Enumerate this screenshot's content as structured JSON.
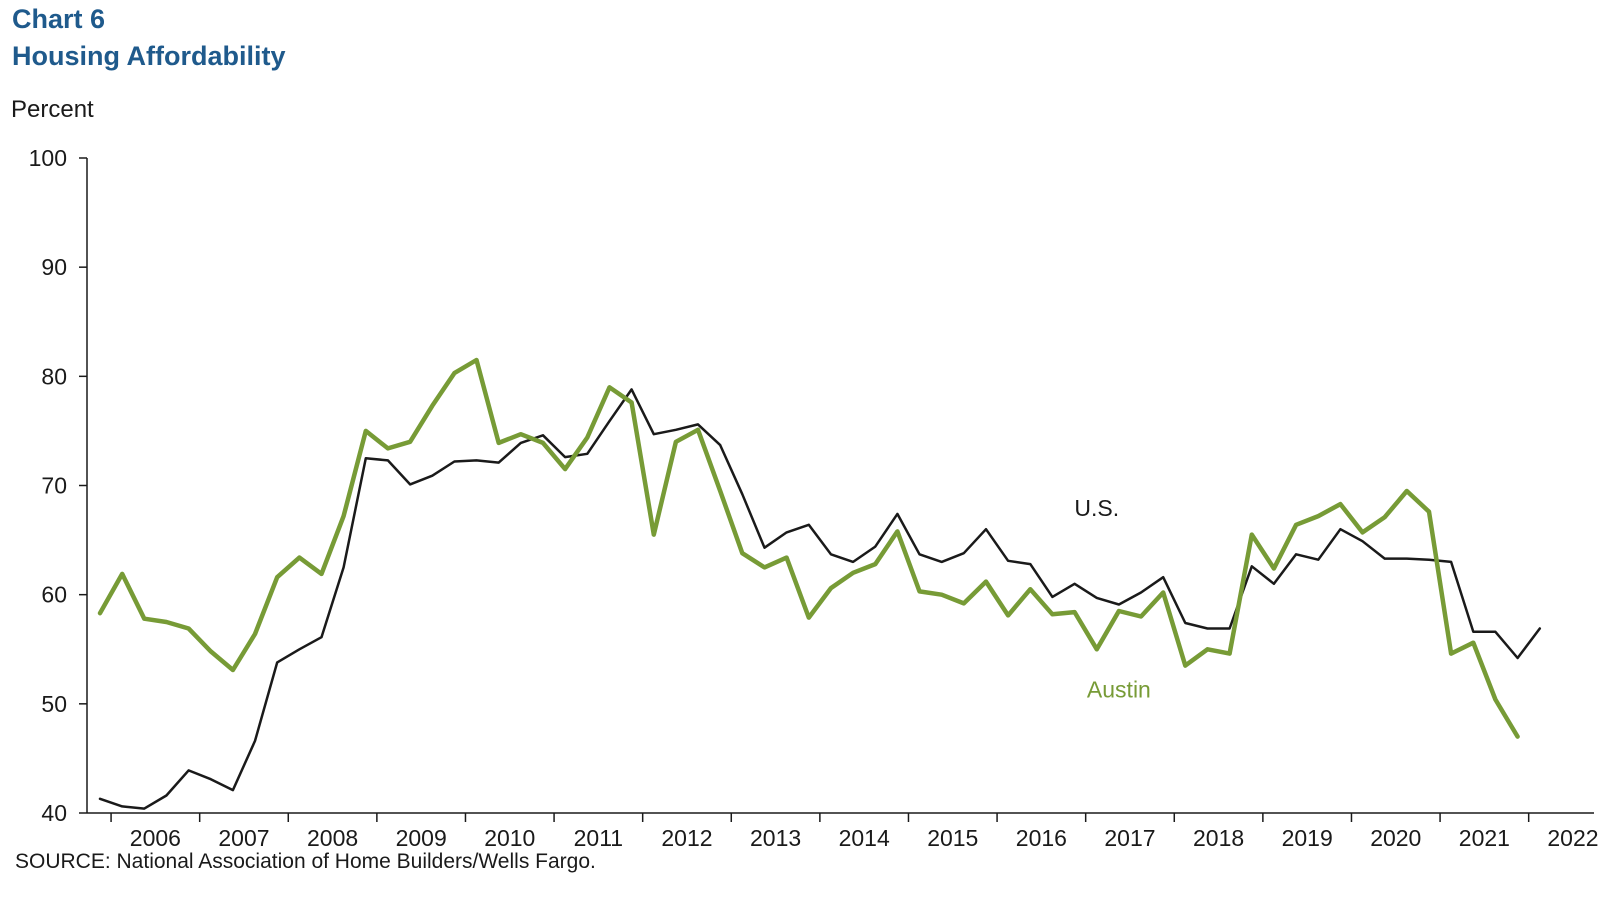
{
  "chart_number": "Chart 6",
  "chart_data": {
    "type": "line",
    "title": "Housing Affordability",
    "ylabel": "Percent",
    "xlabel": "",
    "ylim": [
      40,
      100
    ],
    "yticks": [
      40,
      50,
      60,
      70,
      80,
      90,
      100
    ],
    "xticks": [
      "2006",
      "2007",
      "2008",
      "2009",
      "2010",
      "2011",
      "2012",
      "2013",
      "2014",
      "2015",
      "2016",
      "2017",
      "2018",
      "2019",
      "2020",
      "2021",
      "2022"
    ],
    "x_start": "2005-Q4",
    "frequency": "quarterly",
    "grid": false,
    "series": [
      {
        "name": "U.S.",
        "color": "#1a1a1a",
        "values": [
          41.3,
          40.6,
          40.4,
          41.6,
          43.9,
          43.1,
          42.1,
          46.6,
          53.8,
          55.0,
          56.1,
          62.5,
          72.5,
          72.3,
          70.1,
          70.9,
          72.2,
          72.3,
          72.1,
          73.9,
          74.6,
          72.6,
          72.9,
          75.9,
          78.8,
          74.7,
          75.1,
          75.6,
          73.7,
          69.2,
          64.3,
          65.7,
          66.4,
          63.7,
          63.0,
          64.4,
          67.4,
          63.7,
          63.0,
          63.8,
          66.0,
          63.1,
          62.8,
          59.8,
          61.0,
          59.7,
          59.1,
          60.2,
          61.6,
          57.4,
          56.9,
          56.9,
          62.6,
          61.0,
          63.7,
          63.2,
          66.0,
          64.9,
          63.3,
          63.3,
          63.2,
          63.0,
          56.6,
          56.6,
          54.2,
          56.9
        ]
      },
      {
        "name": "Austin",
        "color": "#779b36",
        "values": [
          58.3,
          61.9,
          57.8,
          57.5,
          56.9,
          54.8,
          53.1,
          56.4,
          61.6,
          63.4,
          61.9,
          67.2,
          75.0,
          73.4,
          74.0,
          77.3,
          80.3,
          81.5,
          73.9,
          74.7,
          73.9,
          71.5,
          74.4,
          79.0,
          77.6,
          65.5,
          74.0,
          75.1,
          69.5,
          63.8,
          62.5,
          63.4,
          57.9,
          60.6,
          62.0,
          62.8,
          65.8,
          60.3,
          60.0,
          59.2,
          61.2,
          58.1,
          60.5,
          58.2,
          58.4,
          55.0,
          58.5,
          58.0,
          60.2,
          53.5,
          55.0,
          54.6,
          65.5,
          62.4,
          66.4,
          67.2,
          68.3,
          65.7,
          67.1,
          69.5,
          67.6,
          54.6,
          55.6,
          50.4,
          47.0
        ]
      }
    ]
  },
  "series_labels": [
    {
      "name": "U.S.",
      "value_x": "2017-Q1",
      "value_y": 67.2
    },
    {
      "name": "Austin",
      "value_x": "2017-Q2",
      "value_y": 50.6
    }
  ],
  "source": "SOURCE: National Association of Home Builders/Wells Fargo."
}
